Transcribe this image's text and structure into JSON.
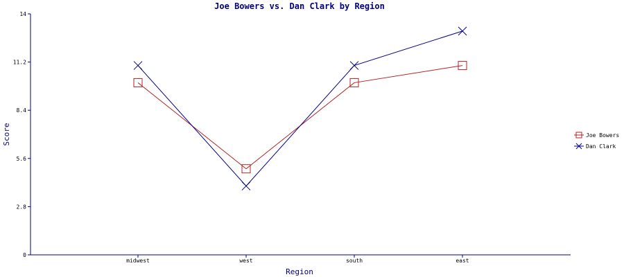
{
  "chart_data": {
    "type": "line",
    "title": "Joe Bowers vs. Dan Clark by Region",
    "xlabel": "Region",
    "ylabel": "Score",
    "categories": [
      "midwest",
      "west",
      "south",
      "east"
    ],
    "ylim": [
      0,
      14
    ],
    "yticks": [
      "0",
      "2.8",
      "5.6",
      "8.4",
      "11.2",
      "14"
    ],
    "grid": false,
    "legend_position": "right",
    "series": [
      {
        "name": "Joe Bowers",
        "values": [
          10,
          5,
          10,
          11
        ],
        "color": "#b22222",
        "marker": "square"
      },
      {
        "name": "Dan Clark",
        "values": [
          11,
          4,
          11,
          13
        ],
        "color": "#00008b",
        "marker": "x"
      }
    ]
  }
}
